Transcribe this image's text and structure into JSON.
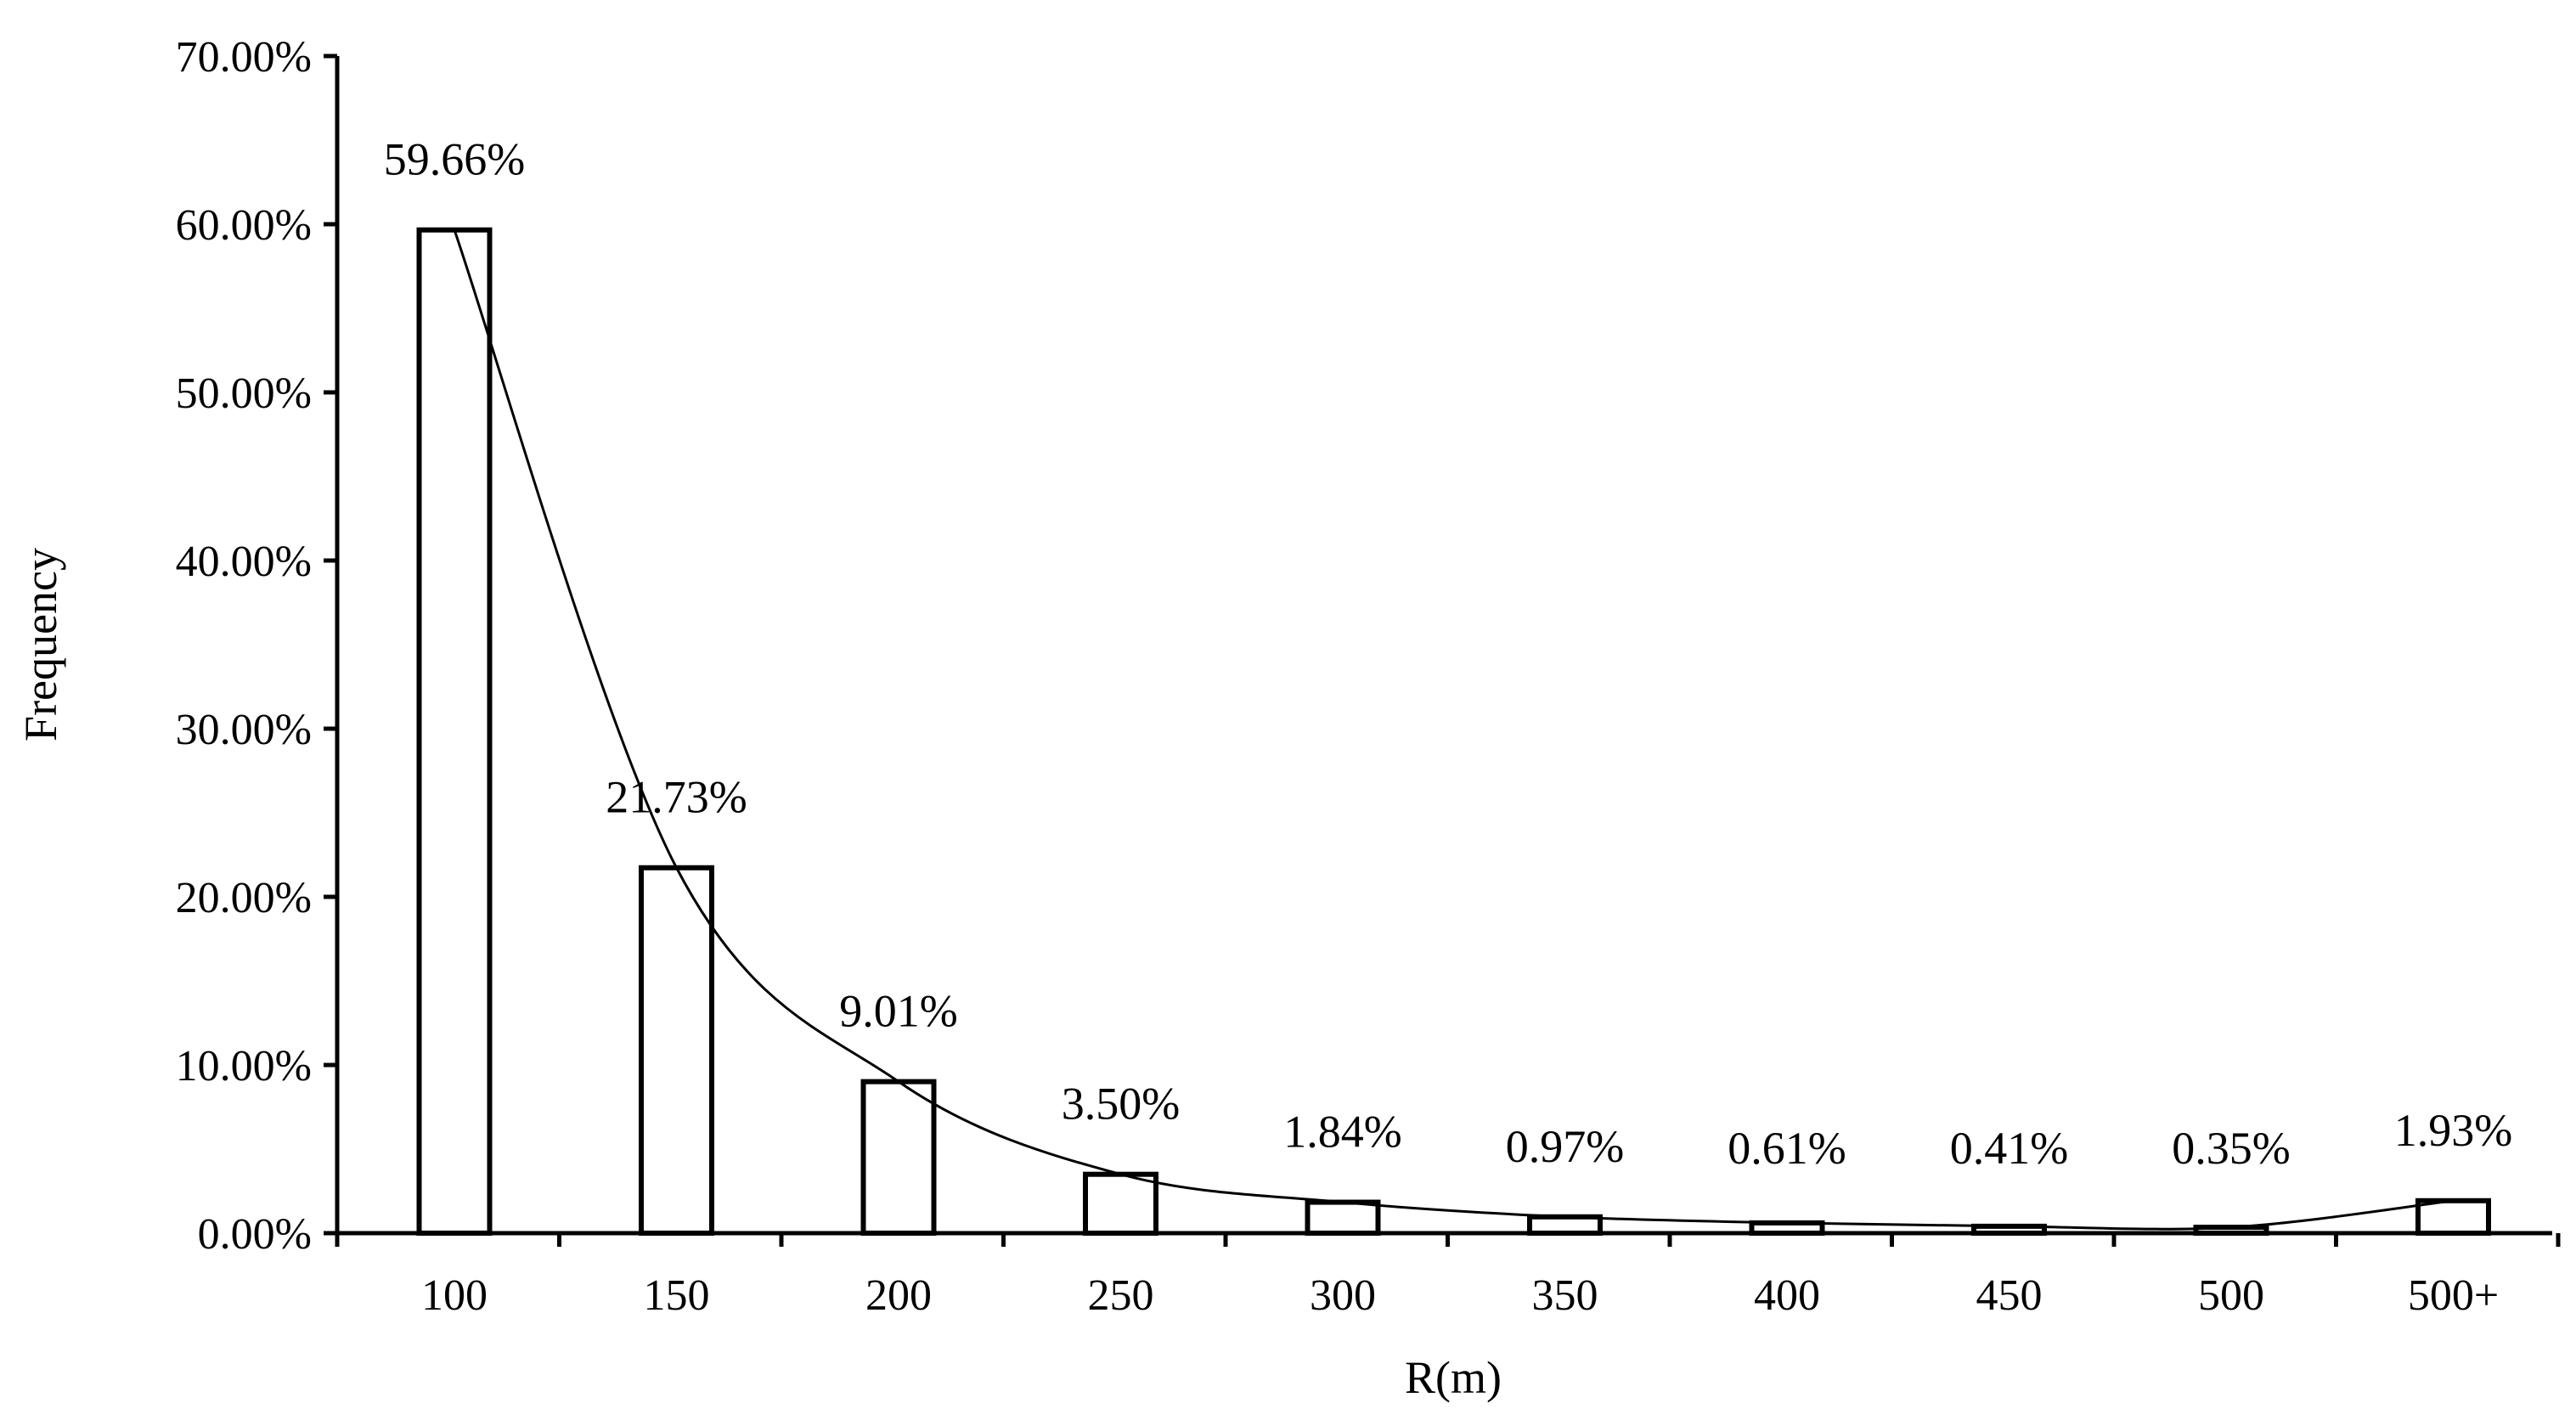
{
  "chart_data": {
    "type": "bar",
    "title": "",
    "xlabel": "R(m)",
    "ylabel": "Frequency",
    "categories": [
      "100",
      "150",
      "200",
      "250",
      "300",
      "350",
      "400",
      "450",
      "500",
      "500+"
    ],
    "values": [
      59.66,
      21.73,
      9.01,
      3.5,
      1.84,
      0.97,
      0.61,
      0.41,
      0.35,
      1.93
    ],
    "data_labels": [
      "59.66%",
      "21.73%",
      "9.01%",
      "3.50%",
      "1.84%",
      "0.97%",
      "0.61%",
      "0.41%",
      "0.35%",
      "1.93%"
    ],
    "ylim": [
      0,
      70
    ],
    "yticks": [
      0,
      10,
      20,
      30,
      40,
      50,
      60,
      70
    ],
    "ytick_labels": [
      "0.00%",
      "10.00%",
      "20.00%",
      "30.00%",
      "40.00%",
      "50.00%",
      "60.00%",
      "70.00%"
    ],
    "grid": false,
    "legend": "none",
    "trendline": "smooth curve through bar tops",
    "colors": {
      "bar_fill": "#ffffff",
      "bar_stroke": "#000000",
      "axis": "#000000",
      "line": "#000000"
    }
  }
}
